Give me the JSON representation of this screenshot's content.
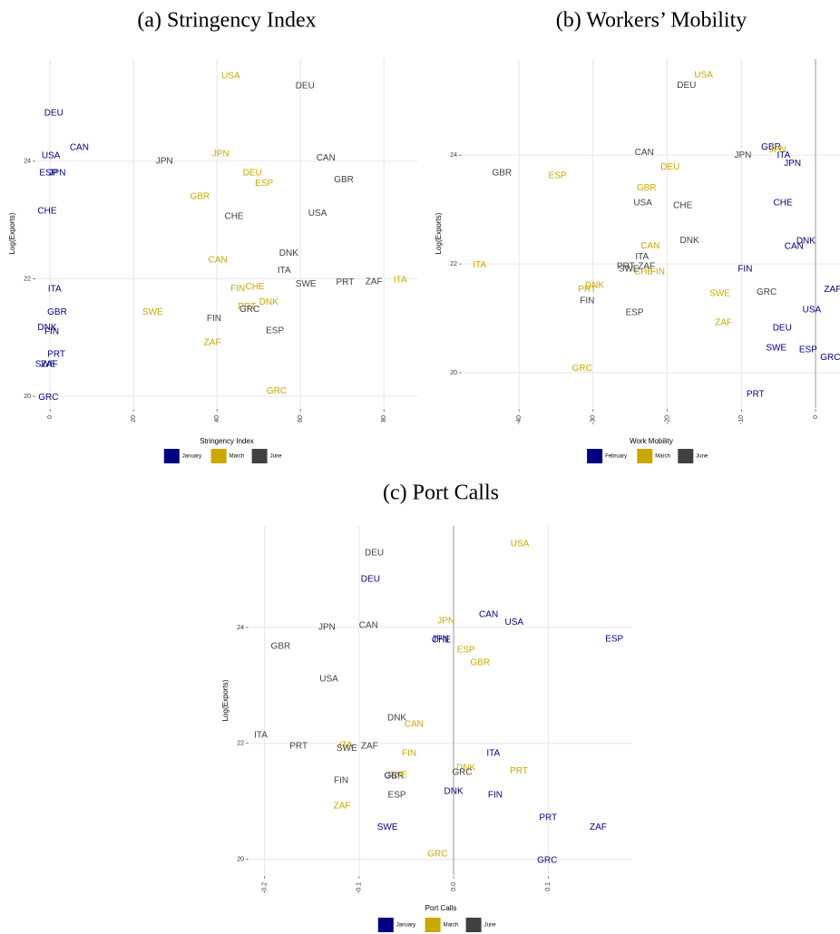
{
  "chart_data": [
    {
      "type": "scatter",
      "title": "(a) Stringency Index",
      "x_label": "Stringency Index",
      "y_label": "Log(Exports)",
      "xlim": [
        -3.3,
        88
      ],
      "ylim": [
        19.8,
        25.74
      ],
      "xticks": [
        0,
        20,
        40,
        60,
        80
      ],
      "yticks": [
        20,
        22,
        24
      ],
      "grid": true,
      "zero_line": false,
      "legend": "bottom",
      "series": [
        {
          "name": "January",
          "color": "#000080",
          "labels": [
            "DEU",
            "CAN",
            "USA",
            "ESP",
            "JPN",
            "CHE",
            "ITA",
            "GBR",
            "DNK",
            "FIN",
            "PRT",
            "SWE",
            "ZAF",
            "GRC"
          ],
          "x": [
            0.9,
            7,
            0.2,
            -0.4,
            1.7,
            -0.7,
            1.1,
            1.7,
            -0.7,
            0.4,
            1.5,
            -1.1,
            -0.2,
            -0.4
          ],
          "y": [
            24.82,
            24.23,
            24.09,
            23.8,
            23.8,
            23.15,
            21.82,
            21.43,
            21.17,
            21.1,
            20.71,
            20.54,
            20.54,
            19.98
          ]
        },
        {
          "name": "March",
          "color": "#c9a800",
          "labels": [
            "USA",
            "JPN",
            "DEU",
            "ESP",
            "GBR",
            "CAN",
            "FIN",
            "CHE",
            "PRT",
            "DNK",
            "SWE",
            "ZAF",
            "GRC",
            "ITA"
          ],
          "x": [
            43.3,
            40.9,
            48.5,
            51.3,
            35.9,
            40.2,
            45,
            49.1,
            47.2,
            52.4,
            24.6,
            38.9,
            54.3,
            83.9
          ],
          "y": [
            25.45,
            24.12,
            23.8,
            23.62,
            23.4,
            22.32,
            21.83,
            21.86,
            21.52,
            21.6,
            21.43,
            20.91,
            20.09,
            21.98
          ]
        },
        {
          "name": "June",
          "color": "#404040",
          "labels": [
            "DEU",
            "JPN",
            "CAN",
            "GBR",
            "CHE",
            "USA",
            "DNK",
            "ITA",
            "SWE",
            "PRT",
            "ZAF",
            "GRC",
            "FIN",
            "ESP"
          ],
          "x": [
            61.1,
            27.4,
            66.1,
            70.4,
            44.1,
            64.1,
            57.2,
            56.1,
            61.3,
            70.7,
            77.6,
            47.8,
            39.3,
            53.9
          ],
          "y": [
            25.28,
            24.0,
            24.05,
            23.68,
            23.06,
            23.11,
            22.43,
            22.14,
            21.91,
            21.94,
            21.95,
            21.48,
            21.32,
            21.11
          ]
        }
      ]
    },
    {
      "type": "scatter",
      "title": "(b) Workers’ Mobility",
      "x_label": "Work Mobility",
      "y_label": "Log(Exports)",
      "xlim": [
        -47.6,
        3.3
      ],
      "ylim": [
        19.35,
        25.77
      ],
      "xticks": [
        -40,
        -30,
        -20,
        -10,
        0
      ],
      "yticks": [
        20,
        22,
        24
      ],
      "grid": true,
      "zero_line": true,
      "legend": "bottom",
      "series": [
        {
          "name": "February",
          "color": "#000080",
          "labels": [
            "GBR",
            "ITA",
            "JPN",
            "CHE",
            "DNK",
            "CAN",
            "FIN",
            "ZAF",
            "USA",
            "DEU",
            "SWE",
            "ESP",
            "GRC",
            "PRT"
          ],
          "x": [
            -6,
            -4.3,
            -3.1,
            -4.4,
            -1.3,
            -2.9,
            -9.5,
            2.3,
            -0.5,
            -4.5,
            -5.3,
            -1,
            2,
            -8.1
          ],
          "y": [
            24.15,
            24.0,
            23.85,
            23.12,
            22.42,
            22.32,
            21.9,
            21.53,
            21.15,
            20.82,
            20.45,
            20.42,
            20.28,
            19.6
          ]
        },
        {
          "name": "March",
          "color": "#c9a800",
          "labels": [
            "USA",
            "JPN",
            "DEU",
            "ESP",
            "GBR",
            "CAN",
            "ITA",
            "FIN",
            "CHE",
            "DNK",
            "PRT",
            "SWE",
            "ZAF",
            "GRC"
          ],
          "x": [
            -15.1,
            -5.1,
            -19.6,
            -34.8,
            -22.8,
            -22.3,
            -45.3,
            -21.3,
            -23.2,
            -29.8,
            -30.8,
            -12.9,
            -12.4,
            -31.5
          ],
          "y": [
            25.47,
            24.1,
            23.78,
            23.62,
            23.4,
            22.33,
            21.98,
            21.85,
            21.85,
            21.6,
            21.53,
            21.45,
            20.92,
            20.08
          ]
        },
        {
          "name": "June",
          "color": "#404040",
          "labels": [
            "DEU",
            "CAN",
            "JPN",
            "GBR",
            "USA",
            "CHE",
            "DNK",
            "ITA",
            "PRT",
            "ZAF",
            "SWE",
            "GRC",
            "FIN",
            "ESP"
          ],
          "x": [
            -17.4,
            -23.1,
            -9.8,
            -42.3,
            -23.3,
            -17.9,
            -17.0,
            -23.4,
            -25.6,
            -22.8,
            -25.2,
            -6.6,
            -30.8,
            -24.4
          ],
          "y": [
            25.28,
            24.05,
            24.0,
            23.67,
            23.12,
            23.07,
            22.43,
            22.13,
            21.95,
            21.95,
            21.9,
            21.48,
            21.32,
            21.1
          ]
        }
      ]
    },
    {
      "type": "scatter",
      "title": "(c) Port Calls",
      "x_label": "Port Calls",
      "y_label": "Log(Exports)",
      "xlim": [
        -0.216,
        0.189
      ],
      "ylim": [
        19.73,
        25.75
      ],
      "xticks": [
        -0.2,
        -0.1,
        {
          "value": 0,
          "label": "0.0"
        },
        0.1
      ],
      "yticks": [
        20,
        22,
        24
      ],
      "grid": true,
      "zero_line": true,
      "legend": "bottom",
      "series": [
        {
          "name": "January",
          "color": "#000080",
          "labels": [
            "DEU",
            "CAN",
            "USA",
            "JPN",
            "CHE",
            "ESP",
            "ITA",
            "GBR",
            "DNK",
            "FIN",
            "PRT",
            "ZAF",
            "SWE",
            "GRC"
          ],
          "x": [
            -0.088,
            0.037,
            0.064,
            -0.014,
            -0.013,
            0.17,
            0.042,
            -0.063,
            0.0,
            0.044,
            0.1,
            0.153,
            -0.07,
            0.099
          ],
          "y": [
            24.83,
            24.22,
            24.09,
            23.8,
            23.78,
            23.8,
            21.83,
            21.44,
            21.17,
            21.11,
            20.72,
            20.55,
            20.55,
            19.98
          ]
        },
        {
          "name": "March",
          "color": "#c9a800",
          "labels": [
            "USA",
            "JPN",
            "ESP",
            "GBR",
            "CAN",
            "ITA",
            "FIN",
            "DNK",
            "PRT",
            "SWE",
            "ZAF",
            "GRC"
          ],
          "x": [
            0.07,
            -0.008,
            0.013,
            0.028,
            -0.042,
            -0.114,
            -0.047,
            0.013,
            0.069,
            -0.06,
            -0.118,
            -0.017
          ],
          "y": [
            25.44,
            24.11,
            23.61,
            23.39,
            22.33,
            21.97,
            21.83,
            21.58,
            21.52,
            21.45,
            20.92,
            20.09
          ]
        },
        {
          "name": "June",
          "color": "#404040",
          "labels": [
            "DEU",
            "CAN",
            "JPN",
            "GBR",
            "USA",
            "DNK",
            "ITA",
            "PRT",
            "SWE",
            "ZAF",
            "GRC",
            "FIN",
            "ESP"
          ],
          "x": [
            -0.084,
            -0.09,
            -0.134,
            -0.183,
            -0.132,
            -0.06,
            -0.204,
            -0.164,
            -0.113,
            -0.089,
            0.009,
            -0.119,
            -0.06
          ],
          "y": [
            25.28,
            24.03,
            24.0,
            23.67,
            23.11,
            22.44,
            22.14,
            21.95,
            21.91,
            21.95,
            21.5,
            21.36,
            21.11
          ]
        }
      ]
    }
  ]
}
